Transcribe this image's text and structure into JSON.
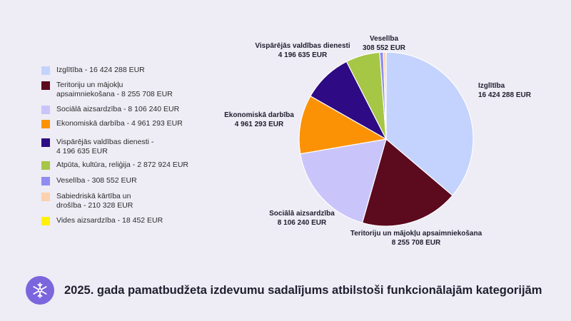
{
  "chart_data": {
    "type": "pie",
    "title": "2025. gada pamatbudžeta izdevumu sadalījums atbilstoši funkcionālajām kategorijām",
    "unit": "EUR",
    "slices": [
      {
        "label": "Izglītība",
        "value": 16424288,
        "value_text": "16 424 288 EUR",
        "legend": "Izglītība - 16 424 288 EUR",
        "color": "#c3d3fd"
      },
      {
        "label": "Teritoriju un mājokļu apsaimniekošana",
        "value": 8255708,
        "value_text": "8 255 708 EUR",
        "legend": "Teritoriju un mājokļu apsaimniekošana - 8 255 708 EUR",
        "color": "#5c0a1e"
      },
      {
        "label": "Sociālā aizsardzība",
        "value": 8106240,
        "value_text": "8 106 240 EUR",
        "legend": "Sociālā aizsardzība - 8 106 240 EUR",
        "color": "#c9c4fa"
      },
      {
        "label": "Ekonomiskā darbība",
        "value": 4961293,
        "value_text": "4 961 293 EUR",
        "legend": "Ekonomiskā darbība - 4 961 293 EUR",
        "color": "#fb9206"
      },
      {
        "label": "Vispārējās valdības dienesti",
        "value": 4196635,
        "value_text": "4 196 635 EUR",
        "legend": "Vispārējās valdības dienesti - 4 196 635 EUR",
        "color": "#2e0a84"
      },
      {
        "label": "Atpūta, kultūra, reliģija",
        "value": 2872924,
        "value_text": "2 872 924 EUR",
        "legend": "Atpūta, kultūra, reliģija - 2 872 924 EUR",
        "color": "#a6c646"
      },
      {
        "label": "Veselība",
        "value": 308552,
        "value_text": "308 552 EUR",
        "legend": "Veselība - 308 552 EUR",
        "color": "#8f8cf2"
      },
      {
        "label": "Sabiedriskā kārtība un drošība",
        "value": 210328,
        "value_text": "210 328 EUR",
        "legend": "Sabiedriskā kārtība un drošība - 210 328 EUR",
        "color": "#fcd1ae"
      },
      {
        "label": "Vides aizsardzība",
        "value": 18452,
        "value_text": "18 452 EUR",
        "legend": "Vides aizsardzība - 18 452 EUR",
        "color": "#fef106"
      }
    ],
    "data_labels": [
      {
        "slice": 0,
        "lines": [
          "Izglītība",
          "16 424 288 EUR"
        ]
      },
      {
        "slice": 1,
        "lines": [
          "Teritoriju un mājokļu apsaimniekošana",
          "8 255 708 EUR"
        ]
      },
      {
        "slice": 2,
        "lines": [
          "Sociālā aizsardzība",
          "8 106 240 EUR"
        ]
      },
      {
        "slice": 3,
        "lines": [
          "Ekonomiskā darbība",
          "4 961 293 EUR"
        ]
      },
      {
        "slice": 4,
        "lines": [
          "Vispārējās valdības dienesti",
          "4 196 635 EUR"
        ]
      },
      {
        "slice": 6,
        "lines": [
          "Veselība",
          "308 552 EUR"
        ]
      }
    ],
    "legend_position": "left"
  },
  "logo": {
    "icon": "snowflake-icon",
    "color": "#7b66dd"
  }
}
